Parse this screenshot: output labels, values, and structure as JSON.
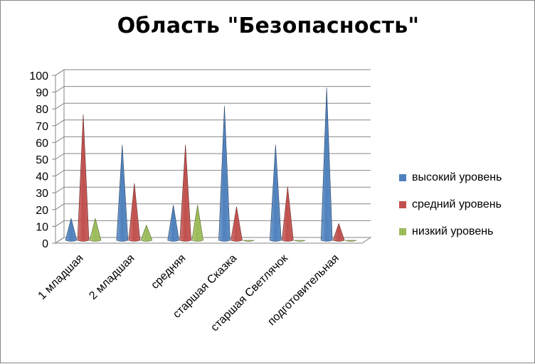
{
  "chart_data": {
    "type": "bar",
    "title": "Область \"Безопасность\"",
    "categories": [
      "1 младшая",
      "2 младшая",
      "средняя",
      "старшая Сказка",
      "старшая Светлячок",
      "подготовительная"
    ],
    "series": [
      {
        "name": "высокий уровень",
        "color": "#4F81BD",
        "values": [
          13,
          57,
          21,
          80,
          57,
          91
        ]
      },
      {
        "name": "средний уровень",
        "color": "#C0504D",
        "values": [
          75,
          34,
          57,
          20,
          32,
          10
        ]
      },
      {
        "name": "низкий уровень",
        "color": "#9BBB59",
        "values": [
          13,
          9,
          21,
          0,
          0,
          0
        ]
      }
    ],
    "yticks": [
      "0",
      "10",
      "20",
      "30",
      "40",
      "50",
      "60",
      "70",
      "80",
      "90",
      "100"
    ],
    "ylim": [
      0,
      100
    ],
    "grid": true,
    "legend_position": "right",
    "bar_shape": "cone"
  }
}
